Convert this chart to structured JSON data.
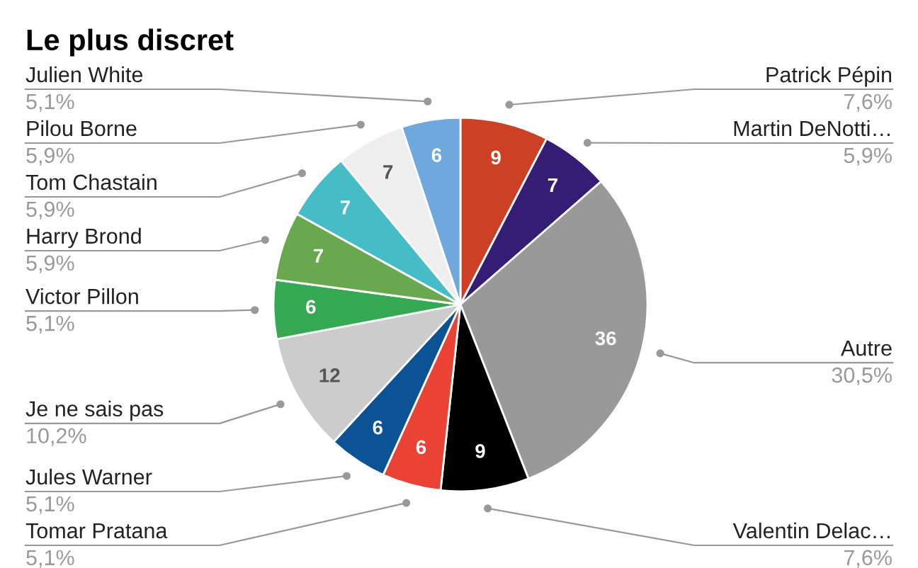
{
  "chart_data": {
    "type": "pie",
    "title": "Le plus discret",
    "categories": [
      "Patrick Pépin",
      "Martin DeNotti…",
      "Autre",
      "Valentin Delac…",
      "Tomar Pratana",
      "Jules Warner",
      "Je ne sais pas",
      "Victor Pillon",
      "Harry Brond",
      "Tom Chastain",
      "Pilou Borne",
      "Julien White"
    ],
    "values": [
      9,
      7,
      36,
      9,
      6,
      6,
      12,
      6,
      7,
      7,
      7,
      6
    ],
    "colors": [
      "#cc4125",
      "#351c75",
      "#999999",
      "#000000",
      "#ea4335",
      "#0b5394",
      "#cccccc",
      "#34a853",
      "#6aa84f",
      "#46bdc6",
      "#eeeeee",
      "#6fa8dc"
    ],
    "annotations": [
      "7,6%",
      "5,9%",
      "30,5%",
      "7,6%",
      "5,1%",
      "5,1%",
      "10,2%",
      "5,1%",
      "5,9%",
      "5,9%",
      "5,9%",
      "5,1%"
    ],
    "data_labels": true,
    "legend": false
  }
}
